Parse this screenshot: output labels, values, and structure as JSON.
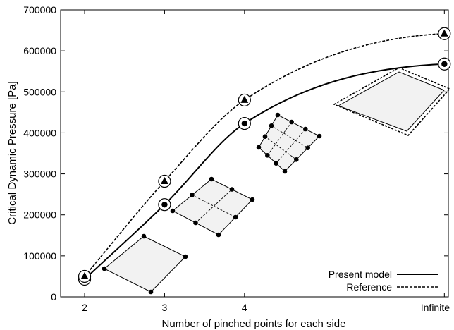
{
  "chart_data": {
    "type": "line",
    "xlabel": "Number of pinched points for each side",
    "ylabel": "Critical Dynamic Pressure [Pa]",
    "ylim": [
      0,
      700000
    ],
    "yticks": [
      0,
      100000,
      200000,
      300000,
      400000,
      500000,
      600000,
      700000
    ],
    "yticklabels": [
      "0",
      "100000",
      "200000",
      "300000",
      "400000",
      "500000",
      "600000",
      "700000"
    ],
    "categories": [
      "2",
      "3",
      "4",
      "Infinite"
    ],
    "x_positions": [
      2,
      3,
      4,
      6.5
    ],
    "xlim": [
      1.7,
      6.55
    ],
    "grid": false,
    "legend_position": "bottom-right",
    "series": [
      {
        "name": "Present model",
        "line_style": "solid",
        "marker": "circled-dot",
        "values": [
          43000,
          225000,
          423000,
          568000
        ]
      },
      {
        "name": "Reference",
        "line_style": "dashed",
        "marker": "circled-triangle",
        "values": [
          50000,
          282000,
          480000,
          642000
        ]
      }
    ]
  }
}
